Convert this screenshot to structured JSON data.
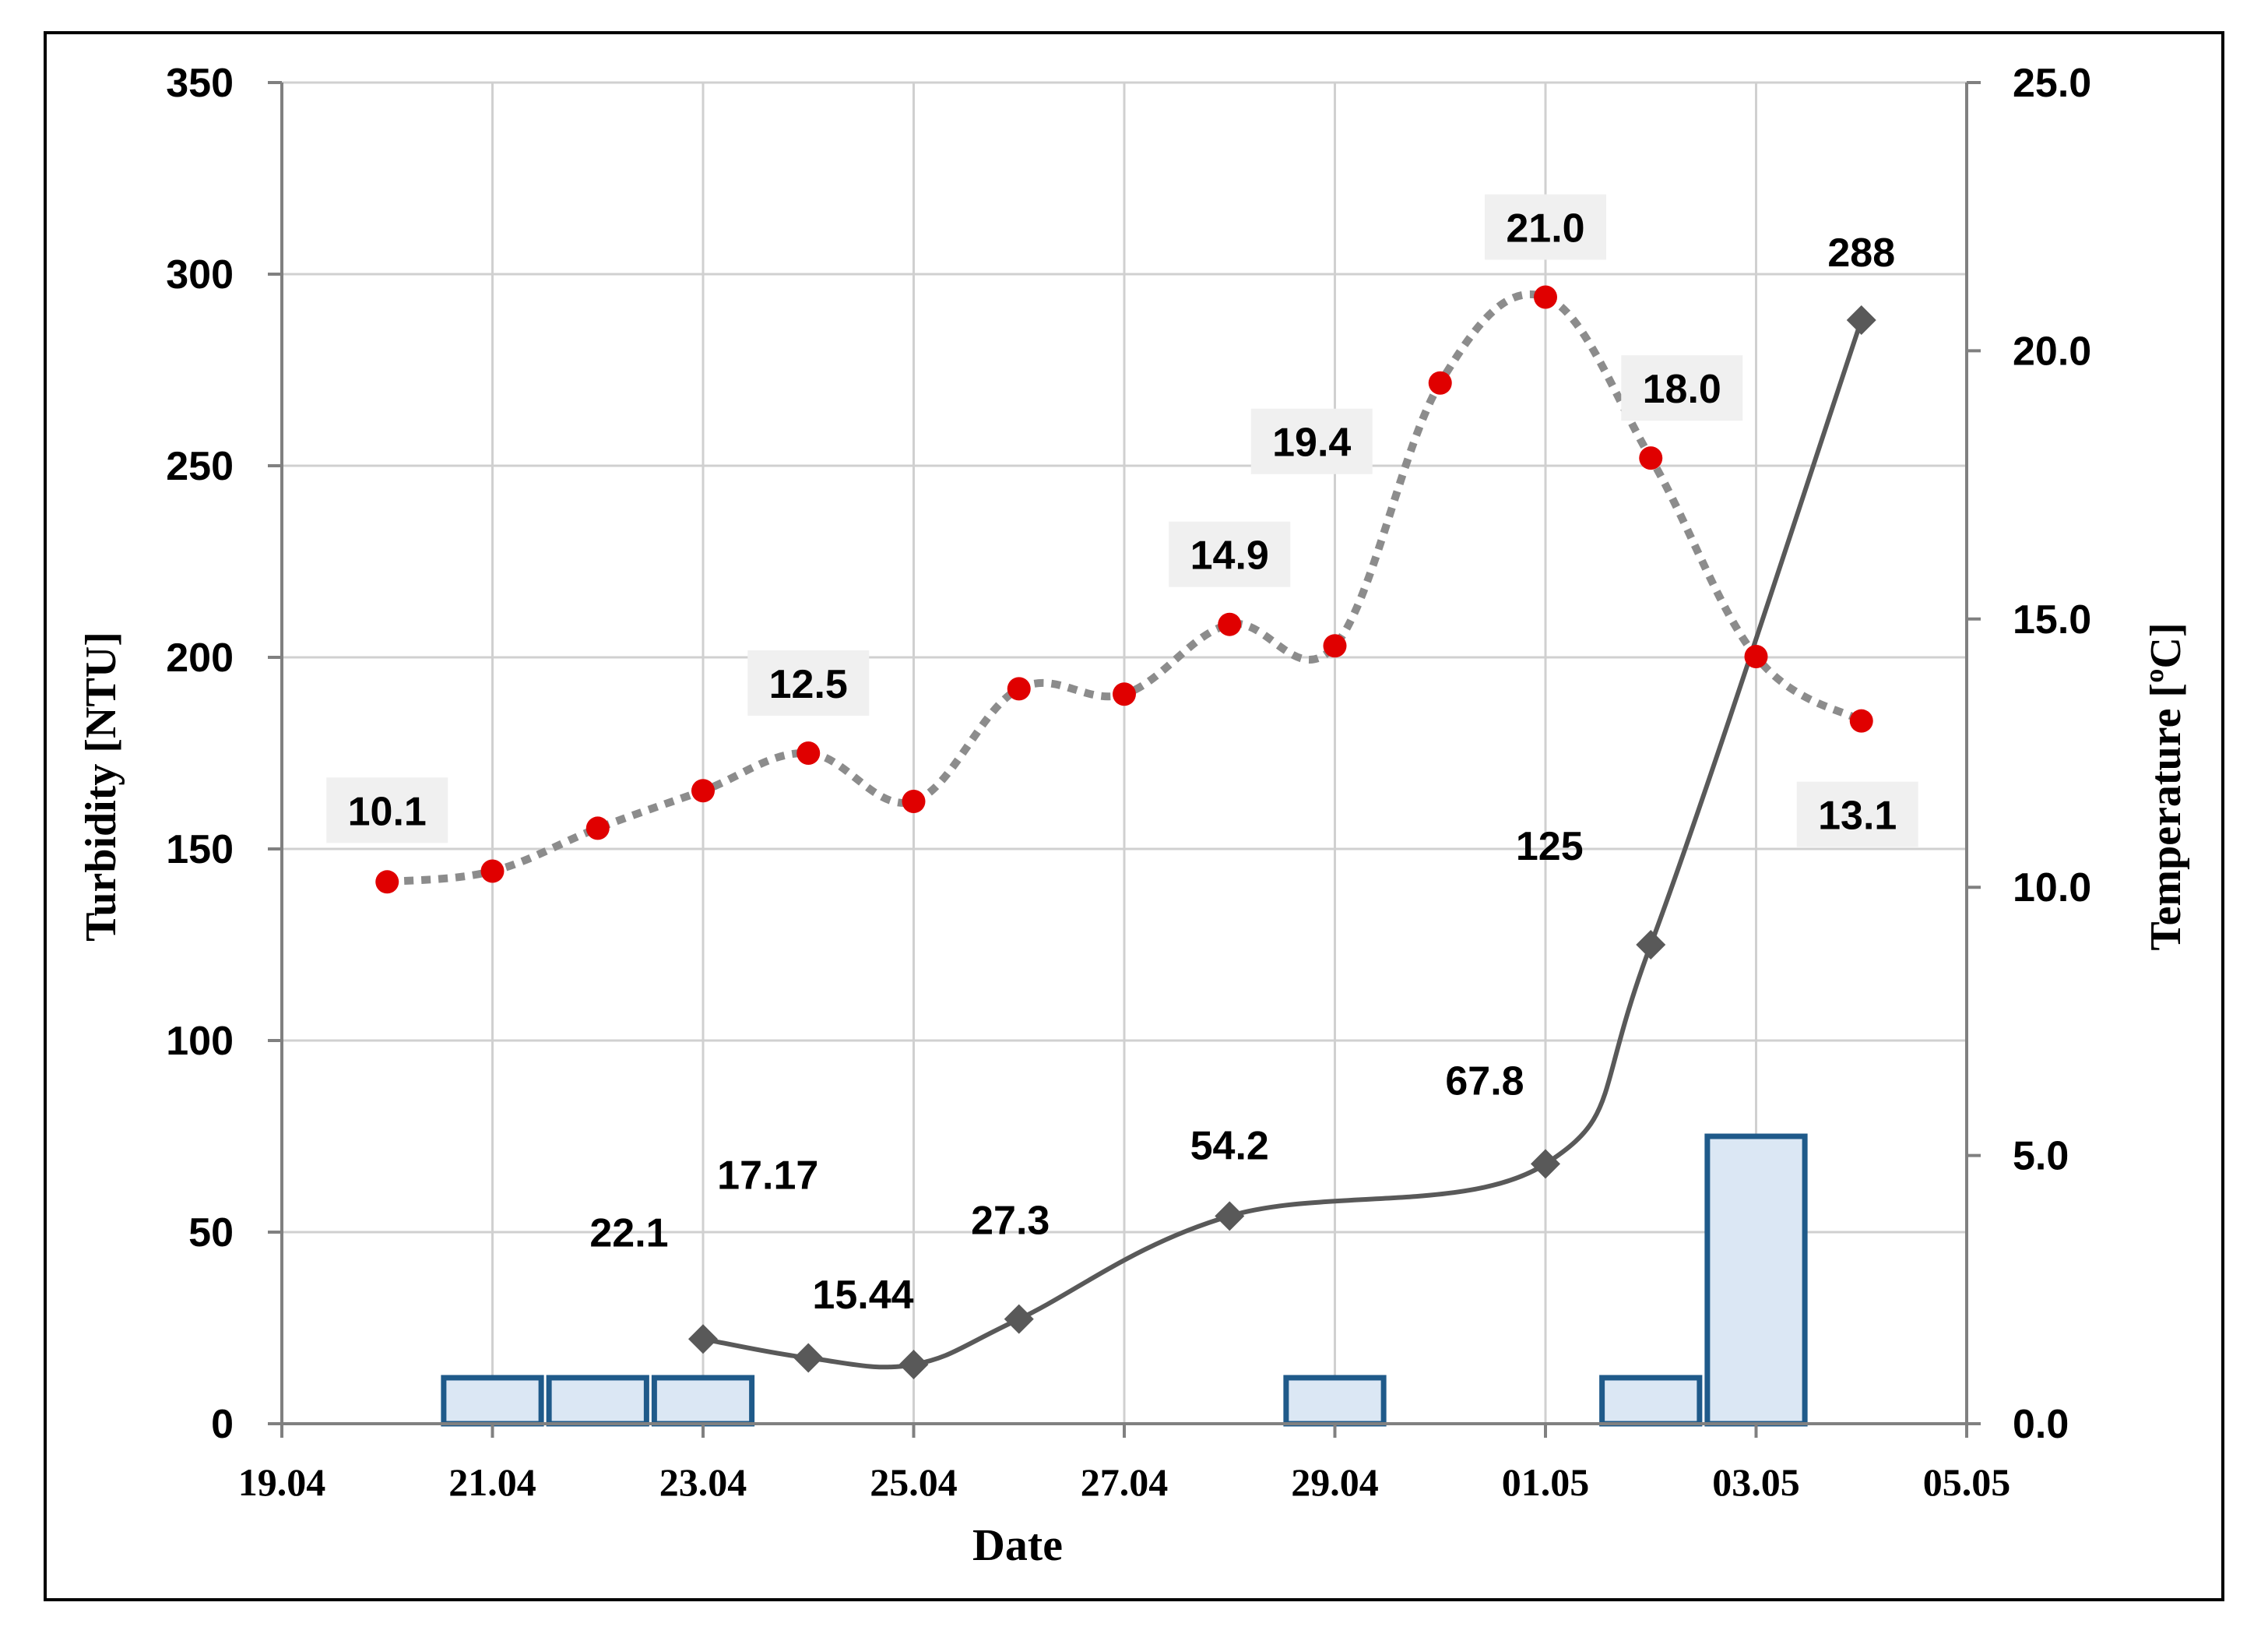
{
  "chart_data": {
    "type": "line",
    "title": "",
    "xlabel": "Date",
    "ylabel_left": "Turbidity [NTU]",
    "ylabel_right": "Temperature [ºC]",
    "x_ticks": [
      "19.04",
      "21.04",
      "23.04",
      "25.04",
      "27.04",
      "29.04",
      "01.05",
      "03.05",
      "05.05"
    ],
    "y_left_ticks": [
      "0",
      "50",
      "100",
      "150",
      "200",
      "250",
      "300",
      "350"
    ],
    "y_right_ticks": [
      "0.0",
      "5.0",
      "10.0",
      "15.0",
      "20.0",
      "25.0"
    ],
    "ylim_left": [
      0,
      350
    ],
    "ylim_right": [
      0,
      25
    ],
    "xlim_days": [
      0,
      16
    ],
    "grid": true,
    "colors": {
      "temperature": "#e00000",
      "temperature_line": "#8c8c8c",
      "turbidity": "#595959",
      "bar_fill": "#dbe7f4",
      "bar_stroke": "#1f5a8a",
      "label_bg": "#f0f0f0",
      "grid": "#d0d0d0"
    },
    "series": [
      {
        "axis": "right",
        "style": "dotted-red-markers",
        "points": [
          {
            "date": "20.04",
            "x": 1,
            "y": 10.1,
            "label": "10.1"
          },
          {
            "date": "21.04",
            "x": 2,
            "y": 10.3,
            "label": ""
          },
          {
            "date": "22.04",
            "x": 3,
            "y": 11.1,
            "label": ""
          },
          {
            "date": "23.04",
            "x": 4,
            "y": 11.8,
            "label": ""
          },
          {
            "date": "24.04",
            "x": 5,
            "y": 12.5,
            "label": "12.5"
          },
          {
            "date": "25.04",
            "x": 6,
            "y": 11.6,
            "label": ""
          },
          {
            "date": "26.04",
            "x": 7,
            "y": 13.7,
            "label": ""
          },
          {
            "date": "27.04",
            "x": 8,
            "y": 13.6,
            "label": ""
          },
          {
            "date": "28.04",
            "x": 9,
            "y": 14.9,
            "label": "14.9"
          },
          {
            "date": "29.04",
            "x": 10,
            "y": 14.5,
            "label": ""
          },
          {
            "date": "30.04",
            "x": 11,
            "y": 19.4,
            "label": "19.4"
          },
          {
            "date": "01.05",
            "x": 12,
            "y": 21.0,
            "label": "21.0"
          },
          {
            "date": "02.05",
            "x": 13,
            "y": 18.0,
            "label": "18.0"
          },
          {
            "date": "03.05",
            "x": 14,
            "y": 14.3,
            "label": ""
          },
          {
            "date": "04.05",
            "x": 15,
            "y": 13.1,
            "label": "13.1"
          }
        ]
      },
      {
        "axis": "left",
        "style": "solid-gray-diamonds",
        "points": [
          {
            "date": "23.04",
            "x": 4,
            "y": 22.1,
            "label": "22.1"
          },
          {
            "date": "24.04",
            "x": 5,
            "y": 17.17,
            "label": "17.17"
          },
          {
            "date": "25.04",
            "x": 6,
            "y": 15.44,
            "label": "15.44"
          },
          {
            "date": "26.04",
            "x": 7,
            "y": 27.3,
            "label": "27.3"
          },
          {
            "date": "28.04",
            "x": 9,
            "y": 54.2,
            "label": "54.2"
          },
          {
            "date": "01.05",
            "x": 12,
            "y": 67.8,
            "label": "67.8"
          },
          {
            "date": "02.05",
            "x": 13,
            "y": 125,
            "label": "125"
          },
          {
            "date": "04.05",
            "x": 15,
            "y": 288,
            "label": "288"
          }
        ]
      },
      {
        "axis": "left",
        "style": "bars",
        "points": [
          {
            "date": "21.04",
            "x": 2,
            "y": 12
          },
          {
            "date": "22.04",
            "x": 3,
            "y": 12
          },
          {
            "date": "23.04",
            "x": 4,
            "y": 12
          },
          {
            "date": "29.04",
            "x": 10,
            "y": 12
          },
          {
            "date": "02.05",
            "x": 13,
            "y": 12
          },
          {
            "date": "03.05",
            "x": 14,
            "y": 75
          }
        ]
      }
    ]
  }
}
